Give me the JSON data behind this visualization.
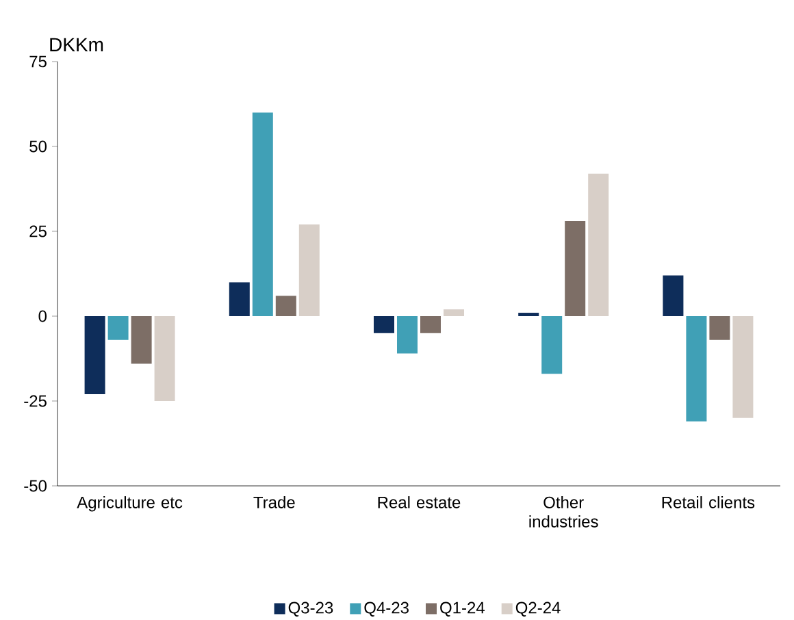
{
  "chart_data": {
    "type": "bar",
    "ylabel": "DKKm",
    "categories": [
      "Agriculture etc",
      "Trade",
      "Real estate",
      "Other industries",
      "Retail clients"
    ],
    "series": [
      {
        "name": "Q3-23",
        "color": "#0e2d5a",
        "values": [
          -23,
          10,
          -5,
          1,
          12
        ]
      },
      {
        "name": "Q4-23",
        "color": "#40a0b6",
        "values": [
          -7,
          60,
          -11,
          -17,
          -31
        ]
      },
      {
        "name": "Q1-24",
        "color": "#7d6e66",
        "values": [
          -14,
          6,
          -5,
          28,
          -7
        ]
      },
      {
        "name": "Q2-24",
        "color": "#d8cfc8",
        "values": [
          -25,
          27,
          2,
          42,
          -30
        ]
      }
    ],
    "ylim": [
      -50,
      75
    ],
    "yticks": [
      -50,
      -25,
      0,
      25,
      50,
      75
    ],
    "grid": false,
    "legend": "bottom"
  }
}
